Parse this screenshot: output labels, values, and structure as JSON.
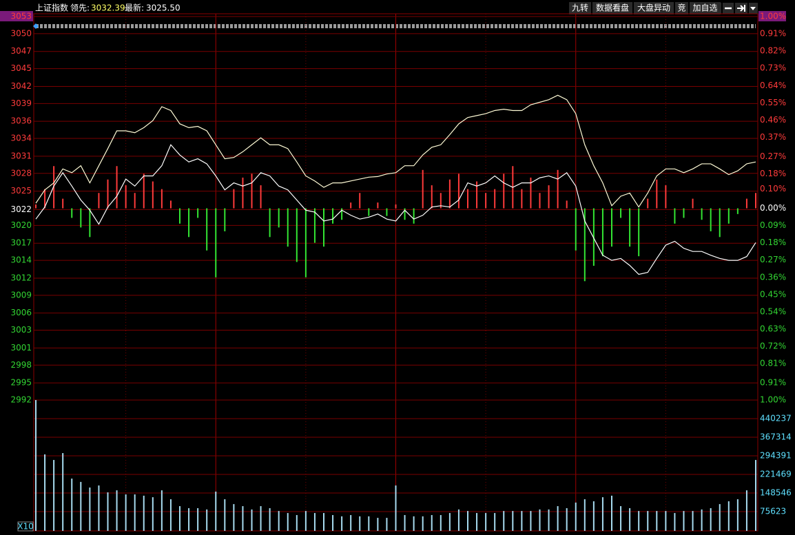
{
  "header": {
    "title": "上证指数",
    "lead_label": "领先:",
    "lead_value": "3032.39",
    "last_label": "最新:",
    "last_value": "3025.50",
    "buttons": [
      "九转",
      "数据看盘",
      "大盘异动",
      "竞",
      "加自选"
    ]
  },
  "chart_data": [
    {
      "type": "line",
      "x": [
        0,
        3,
        6,
        9,
        12,
        15,
        18,
        21,
        24,
        27,
        30,
        33,
        36,
        39,
        42,
        45,
        48,
        51,
        54,
        57,
        60,
        63,
        66,
        69,
        72,
        75,
        78,
        81,
        84,
        87,
        90,
        93,
        96,
        99,
        102,
        105,
        108,
        111,
        114,
        117,
        120,
        123,
        126,
        129,
        132,
        135,
        138,
        141,
        144,
        147,
        150,
        153,
        156,
        159,
        162,
        165,
        168,
        171,
        174,
        177,
        180,
        183,
        186,
        189,
        192,
        195,
        198,
        201,
        204,
        207,
        210,
        213,
        216,
        219,
        222,
        225,
        228,
        231,
        234,
        237,
        240
      ],
      "xlim": [
        0,
        240
      ],
      "xticks": [
        30,
        60,
        90,
        120,
        150,
        180,
        210
      ],
      "ylim": [
        2992.4,
        3052.8
      ],
      "yticks": [
        {
          "value": 3052.8,
          "label": "3053"
        },
        {
          "value": 3050.1,
          "label": "3050"
        },
        {
          "value": 3047.3,
          "label": "3047"
        },
        {
          "value": 3044.6,
          "label": "3045"
        },
        {
          "value": 3041.8,
          "label": "3042"
        },
        {
          "value": 3039.1,
          "label": "3039"
        },
        {
          "value": 3036.3,
          "label": "3036"
        },
        {
          "value": 3033.6,
          "label": "3034"
        },
        {
          "value": 3030.8,
          "label": "3031"
        },
        {
          "value": 3028.1,
          "label": "3028"
        },
        {
          "value": 3025.3,
          "label": "3025"
        },
        {
          "value": 3022.4,
          "label": "3022"
        },
        {
          "value": 3019.9,
          "label": "3020"
        },
        {
          "value": 3017.1,
          "label": "3017"
        },
        {
          "value": 3014.4,
          "label": "3014"
        },
        {
          "value": 3011.6,
          "label": "3012"
        },
        {
          "value": 3008.9,
          "label": "3009"
        },
        {
          "value": 3006.1,
          "label": "3006"
        },
        {
          "value": 3003.4,
          "label": "3003"
        },
        {
          "value": 3000.6,
          "label": "3001"
        },
        {
          "value": 2997.9,
          "label": "2998"
        },
        {
          "value": 2995.1,
          "label": "2995"
        },
        {
          "value": 2992.4,
          "label": "2992"
        }
      ],
      "y2lim": [
        -1,
        1
      ],
      "y2ticks": [
        {
          "value": 1.0,
          "label": "1.00%"
        },
        {
          "value": 0.91,
          "label": "0.91%"
        },
        {
          "value": 0.82,
          "label": "0.82%"
        },
        {
          "value": 0.73,
          "label": "0.73%"
        },
        {
          "value": 0.64,
          "label": "0.64%"
        },
        {
          "value": 0.55,
          "label": "0.55%"
        },
        {
          "value": 0.46,
          "label": "0.46%"
        },
        {
          "value": 0.37,
          "label": "0.37%"
        },
        {
          "value": 0.27,
          "label": "0.27%"
        },
        {
          "value": 0.18,
          "label": "0.18%"
        },
        {
          "value": 0.1,
          "label": "0.10%"
        },
        {
          "value": 0,
          "label": "0.00%"
        },
        {
          "value": -0.09,
          "label": "0.09%"
        },
        {
          "value": -0.18,
          "label": "0.18%"
        },
        {
          "value": -0.27,
          "label": "0.27%"
        },
        {
          "value": -0.36,
          "label": "0.36%"
        },
        {
          "value": -0.45,
          "label": "0.45%"
        },
        {
          "value": -0.54,
          "label": "0.54%"
        },
        {
          "value": -0.63,
          "label": "0.63%"
        },
        {
          "value": -0.72,
          "label": "0.72%"
        },
        {
          "value": -0.81,
          "label": "0.81%"
        },
        {
          "value": -0.91,
          "label": "0.91%"
        },
        {
          "value": -1.0,
          "label": "1.00%"
        }
      ],
      "grid": true,
      "series": [
        {
          "type": "bar",
          "axis": "y2",
          "color_up": "#ff3b3b",
          "color_down": "#33e633",
          "values": [
            0.02,
            0.1,
            0.22,
            0.05,
            -0.05,
            -0.1,
            -0.15,
            0.08,
            0.15,
            0.22,
            0.12,
            0.08,
            0.18,
            0.14,
            0.1,
            0.04,
            -0.08,
            -0.15,
            -0.05,
            -0.22,
            -0.36,
            -0.12,
            0.1,
            0.16,
            0.18,
            0.12,
            -0.15,
            -0.1,
            -0.2,
            -0.28,
            -0.36,
            -0.18,
            -0.2,
            -0.08,
            -0.06,
            0.03,
            0.08,
            -0.04,
            0.03,
            -0.04,
            0.02,
            -0.06,
            -0.08,
            0.2,
            0.12,
            0.08,
            0.15,
            0.18,
            0.1,
            0.14,
            0.08,
            0.1,
            0.18,
            0.22,
            0.1,
            0.16,
            0.08,
            0.12,
            0.2,
            0.04,
            -0.22,
            -0.38,
            -0.3,
            -0.25,
            -0.2,
            -0.05,
            -0.2,
            -0.25,
            0.05,
            0.15,
            0.12,
            -0.08,
            -0.05,
            0.05,
            -0.06,
            -0.12,
            -0.15,
            -0.08,
            -0.03,
            0.05,
            0.08
          ]
        },
        {
          "type": "line",
          "color": "#fffbd6",
          "values": [
            3023.4,
            3025.5,
            3026.6,
            3028.8,
            3028.2,
            3029.3,
            3026.6,
            3029.3,
            3032.0,
            3034.8,
            3034.8,
            3034.5,
            3035.3,
            3036.4,
            3038.6,
            3038.0,
            3035.9,
            3035.3,
            3035.5,
            3034.8,
            3032.6,
            3030.4,
            3030.6,
            3031.5,
            3032.6,
            3033.7,
            3032.6,
            3032.6,
            3032.0,
            3029.9,
            3027.7,
            3026.9,
            3025.9,
            3026.6,
            3026.6,
            3026.9,
            3027.2,
            3027.5,
            3027.6,
            3028.0,
            3028.2,
            3029.3,
            3029.3,
            3031.0,
            3032.2,
            3032.6,
            3034.2,
            3035.9,
            3036.9,
            3037.2,
            3037.5,
            3038.0,
            3038.2,
            3038.0,
            3038.0,
            3038.9,
            3039.3,
            3039.7,
            3040.4,
            3039.7,
            3037.5,
            3032.6,
            3029.3,
            3026.6,
            3023.0,
            3024.5,
            3025.0,
            3022.8,
            3025.0,
            3027.7,
            3028.8,
            3028.8,
            3028.2,
            3028.8,
            3029.6,
            3029.6,
            3028.8,
            3027.9,
            3028.5,
            3029.6,
            3029.9
          ]
        },
        {
          "type": "line",
          "color": "#ffffff",
          "values": [
            3020.9,
            3022.8,
            3026.1,
            3028.2,
            3026.1,
            3023.9,
            3022.3,
            3020.1,
            3022.8,
            3024.5,
            3027.2,
            3026.1,
            3027.7,
            3027.7,
            3029.3,
            3032.6,
            3031.0,
            3029.9,
            3030.4,
            3029.6,
            3027.7,
            3025.5,
            3026.6,
            3026.1,
            3026.6,
            3028.2,
            3027.7,
            3026.1,
            3025.5,
            3023.9,
            3022.3,
            3022.0,
            3020.6,
            3020.9,
            3022.3,
            3021.5,
            3020.9,
            3021.2,
            3021.7,
            3020.9,
            3020.6,
            3022.3,
            3020.9,
            3021.5,
            3022.8,
            3023.0,
            3022.8,
            3023.9,
            3026.6,
            3026.1,
            3026.6,
            3027.7,
            3026.6,
            3025.9,
            3026.6,
            3026.6,
            3027.4,
            3027.7,
            3027.2,
            3028.2,
            3026.1,
            3020.6,
            3017.9,
            3015.2,
            3014.4,
            3014.7,
            3013.6,
            3012.2,
            3012.5,
            3014.7,
            3016.8,
            3017.4,
            3016.3,
            3015.8,
            3015.8,
            3015.2,
            3014.7,
            3014.4,
            3014.4,
            3015.0,
            3017.2
          ]
        }
      ]
    },
    {
      "type": "bar",
      "x": [
        0,
        3,
        6,
        9,
        12,
        15,
        18,
        21,
        24,
        27,
        30,
        33,
        36,
        39,
        42,
        45,
        48,
        51,
        54,
        57,
        60,
        63,
        66,
        69,
        72,
        75,
        78,
        81,
        84,
        87,
        90,
        93,
        96,
        99,
        102,
        105,
        108,
        111,
        114,
        117,
        120,
        123,
        126,
        129,
        132,
        135,
        138,
        141,
        144,
        147,
        150,
        153,
        156,
        159,
        162,
        165,
        168,
        171,
        174,
        177,
        180,
        183,
        186,
        189,
        192,
        195,
        198,
        201,
        204,
        207,
        210,
        213,
        216,
        219,
        222,
        225,
        228,
        231,
        234,
        237,
        240
      ],
      "xlim": [
        0,
        240
      ],
      "ylim": [
        0,
        513000
      ],
      "yticks": [
        440237,
        367314,
        294391,
        221469,
        148546,
        75623
      ],
      "multiplier_label": "X10",
      "color": "#a8dcf0",
      "grid": true,
      "values": [
        513000,
        300000,
        278000,
        305000,
        205000,
        192000,
        170000,
        178000,
        151000,
        159000,
        143000,
        143000,
        138000,
        132000,
        159000,
        124000,
        97000,
        89000,
        89000,
        84000,
        154000,
        124000,
        105000,
        97000,
        84000,
        97000,
        89000,
        78000,
        70000,
        62000,
        78000,
        70000,
        70000,
        62000,
        57000,
        62000,
        57000,
        57000,
        51000,
        51000,
        178000,
        62000,
        57000,
        57000,
        62000,
        62000,
        70000,
        84000,
        78000,
        70000,
        70000,
        70000,
        78000,
        78000,
        78000,
        78000,
        84000,
        84000,
        97000,
        89000,
        111000,
        124000,
        116000,
        132000,
        138000,
        97000,
        89000,
        78000,
        78000,
        78000,
        78000,
        70000,
        78000,
        78000,
        84000,
        89000,
        105000,
        116000,
        124000,
        159000,
        278000
      ]
    }
  ]
}
